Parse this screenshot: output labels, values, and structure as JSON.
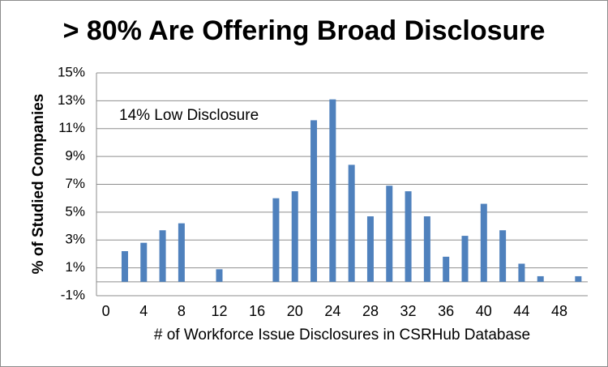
{
  "chart_data": {
    "type": "bar",
    "title": "> 80% Are Offering Broad Disclosure",
    "xlabel": "# of Workforce Issue Disclosures in CSRHub Database",
    "ylabel": "% of Studied Companies",
    "annotation": "14% Low Disclosure",
    "ylim": [
      -1,
      15
    ],
    "xlim": [
      -1,
      51
    ],
    "y_ticks": [
      "-1%",
      "1%",
      "3%",
      "5%",
      "7%",
      "9%",
      "11%",
      "13%",
      "15%"
    ],
    "x_ticks": [
      "0",
      "4",
      "8",
      "12",
      "16",
      "20",
      "24",
      "28",
      "32",
      "36",
      "40",
      "44",
      "48"
    ],
    "gridlines": true,
    "legend": "none",
    "bar_color": "#4f81bd",
    "x": [
      2,
      4,
      6,
      8,
      12,
      18,
      20,
      22,
      24,
      26,
      28,
      30,
      32,
      34,
      36,
      38,
      40,
      42,
      44,
      46,
      50
    ],
    "values": [
      2.2,
      2.8,
      3.7,
      4.2,
      0.9,
      6.0,
      6.5,
      11.6,
      13.1,
      8.4,
      4.7,
      6.9,
      6.5,
      4.7,
      1.8,
      3.3,
      5.6,
      3.7,
      1.3,
      0.4,
      0.4
    ]
  }
}
